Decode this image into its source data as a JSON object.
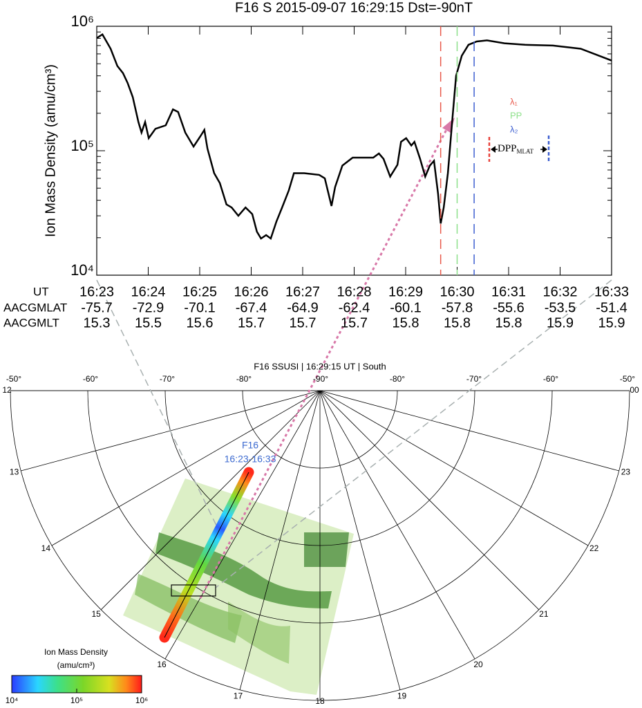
{
  "chart_data": {
    "type": "line",
    "title": "F16 S 2015-09-07 16:29:15 Dst=-90nT",
    "y_label": "Ion Mass Density (amu/cm³)",
    "log_y": true,
    "grid": false,
    "color": "#000000",
    "xlim": [
      23,
      33
    ],
    "ylim": [
      10000,
      1000000
    ],
    "xticks": [
      {
        "value": 23,
        "label": "16:23"
      },
      {
        "value": 24,
        "label": "16:24"
      },
      {
        "value": 25,
        "label": "16:25"
      },
      {
        "value": 26,
        "label": "16:26"
      },
      {
        "value": 27,
        "label": "16:27"
      },
      {
        "value": 28,
        "label": "16:28"
      },
      {
        "value": 29,
        "label": "16:29"
      },
      {
        "value": 30,
        "label": "16:30"
      },
      {
        "value": 31,
        "label": "16:31"
      },
      {
        "value": 32,
        "label": "16:32"
      },
      {
        "value": 33,
        "label": "16:33"
      }
    ],
    "yticks": [
      {
        "value": 10000,
        "label": "10⁴"
      },
      {
        "value": 100000,
        "label": "10⁵"
      },
      {
        "value": 1000000,
        "label": "10⁶"
      }
    ],
    "row_labels": [
      "UT",
      "AACGMLAT",
      "AACGMLT"
    ],
    "aacgmlat": [
      "-75.7",
      "-72.9",
      "-70.1",
      "-67.4",
      "-64.9",
      "-62.4",
      "-60.1",
      "-57.8",
      "-55.6",
      "-53.5",
      "-51.4"
    ],
    "aacgmlt": [
      "15.3",
      "15.5",
      "15.6",
      "15.7",
      "15.7",
      "15.7",
      "15.8",
      "15.8",
      "15.8",
      "15.9",
      "15.9"
    ],
    "x": [
      23.0,
      23.11,
      23.27,
      23.4,
      23.51,
      23.6,
      23.7,
      23.81,
      23.87,
      23.94,
      24.01,
      24.14,
      24.34,
      24.48,
      24.58,
      24.72,
      24.88,
      25.01,
      25.09,
      25.15,
      25.28,
      25.39,
      25.52,
      25.62,
      25.75,
      25.89,
      26.02,
      26.11,
      26.19,
      26.29,
      26.38,
      26.49,
      26.6,
      26.73,
      26.83,
      27.03,
      27.32,
      27.43,
      27.56,
      27.63,
      27.77,
      27.97,
      28.37,
      28.48,
      28.57,
      28.7,
      28.84,
      28.91,
      29.01,
      29.11,
      29.17,
      29.28,
      29.38,
      29.47,
      29.55,
      29.63,
      29.68,
      29.74,
      29.82,
      29.91,
      29.98,
      30.09,
      30.22,
      30.38,
      30.58,
      30.92,
      31.32,
      31.86,
      32.4,
      33.0
    ],
    "values": [
      805000,
      860000,
      660000,
      480000,
      420000,
      350000,
      270000,
      170000,
      140000,
      170000,
      126000,
      150000,
      160000,
      215000,
      205000,
      140000,
      108000,
      130000,
      147000,
      104000,
      66000,
      55000,
      37000,
      35000,
      30000,
      35000,
      31000,
      22400,
      19700,
      21000,
      19700,
      27000,
      35000,
      48000,
      66000,
      66000,
      64000,
      60000,
      36000,
      51000,
      76000,
      88000,
      88000,
      95000,
      86000,
      62000,
      77000,
      118000,
      126000,
      110000,
      118000,
      86000,
      62000,
      76000,
      83000,
      45000,
      26000,
      35000,
      66000,
      185000,
      400000,
      580000,
      710000,
      755000,
      770000,
      730000,
      710000,
      700000,
      660000,
      530000
    ],
    "vlines": [
      {
        "name": "λ₁",
        "x": 29.68,
        "color": "#e8584a"
      },
      {
        "name": "PP",
        "x": 30.0,
        "color": "#8ee08a"
      },
      {
        "name": "λ₂",
        "x": 30.33,
        "color": "#3c5ed0"
      }
    ],
    "dpp_label": "DPP",
    "dpp_subscript": "MLAT"
  },
  "polar_map": {
    "title": "F16 SSUSI | 16:29:15 UT | South",
    "lat_labels": [
      "-50°",
      "-60°",
      "-70°",
      "-80°",
      "-90°",
      "-80°",
      "-70°",
      "-60°",
      "-50°"
    ],
    "mlt_labels": [
      "12",
      "13",
      "14",
      "15",
      "16",
      "17",
      "18",
      "19",
      "20",
      "21",
      "22",
      "23",
      "00"
    ],
    "track_name": "F16",
    "track_time": "16:23-16:33",
    "colorbar": {
      "title": "Ion Mass Density",
      "unit": "(amu/cm³)",
      "clim": [
        10000,
        1000000
      ],
      "ticks": [
        {
          "value": 10000,
          "label": "10⁴"
        },
        {
          "value": 100000,
          "label": "10⁵"
        },
        {
          "value": 1000000,
          "label": "10⁶"
        }
      ]
    }
  }
}
